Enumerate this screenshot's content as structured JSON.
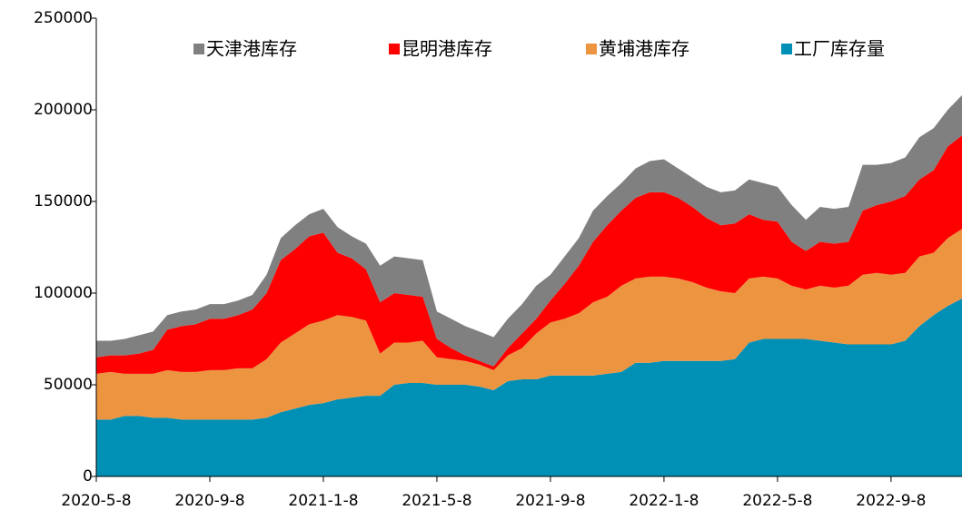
{
  "chart_data": {
    "type": "stacked_area",
    "categories": [
      "2020-5-8",
      null,
      null,
      null,
      null,
      null,
      null,
      null,
      "2020-9-8",
      null,
      null,
      null,
      null,
      null,
      null,
      null,
      "2021-1-8",
      null,
      null,
      null,
      null,
      null,
      null,
      null,
      "2021-5-8",
      null,
      null,
      null,
      null,
      null,
      null,
      null,
      "2021-9-8",
      null,
      null,
      null,
      null,
      null,
      null,
      null,
      "2022-1-8",
      null,
      null,
      null,
      null,
      null,
      null,
      null,
      "2022-5-8",
      null,
      null,
      null,
      null,
      null,
      null,
      null,
      "2022-9-8",
      null,
      null,
      null,
      null,
      null
    ],
    "series": [
      {
        "name": "天津港库存",
        "color": "#808080",
        "values": [
          9000,
          8000,
          9000,
          10000,
          10000,
          8000,
          8000,
          8000,
          8000,
          8000,
          8000,
          8000,
          10000,
          12000,
          13000,
          12000,
          13000,
          14000,
          12000,
          14000,
          20000,
          20000,
          20000,
          20000,
          15000,
          16000,
          16000,
          16000,
          16000,
          16000,
          16000,
          18000,
          14000,
          15000,
          15000,
          17000,
          16000,
          15000,
          16000,
          17000,
          18000,
          16000,
          16000,
          17000,
          18000,
          18000,
          19000,
          20000,
          19000,
          20000,
          17000,
          19000,
          19000,
          19000,
          25000,
          22000,
          21000,
          21000,
          23000,
          23000,
          20000,
          22000
        ]
      },
      {
        "name": "昆明港库存",
        "color": "#ff0000",
        "values": [
          9000,
          9000,
          10000,
          11000,
          13000,
          22000,
          25000,
          26000,
          28000,
          28000,
          29000,
          32000,
          36000,
          45000,
          46000,
          48000,
          48000,
          34000,
          32000,
          28000,
          28000,
          27000,
          26000,
          24000,
          10000,
          6000,
          3000,
          2000,
          2000,
          4000,
          8000,
          8000,
          12000,
          19000,
          26000,
          33000,
          39000,
          41000,
          44000,
          46000,
          46000,
          44000,
          41000,
          38000,
          36000,
          38000,
          35000,
          31000,
          31000,
          24000,
          21000,
          24000,
          24000,
          24000,
          35000,
          37000,
          40000,
          42000,
          42000,
          45000,
          50000,
          51000
        ]
      },
      {
        "name": "黄埔港库存",
        "color": "#ed9441",
        "values": [
          25000,
          26000,
          23000,
          23000,
          24000,
          26000,
          26000,
          26000,
          27000,
          27000,
          28000,
          28000,
          32000,
          38000,
          41000,
          44000,
          45000,
          46000,
          44000,
          41000,
          23000,
          23000,
          22000,
          23000,
          15000,
          14000,
          13000,
          12000,
          11000,
          14000,
          17000,
          25000,
          29000,
          31000,
          34000,
          40000,
          42000,
          47000,
          46000,
          47000,
          46000,
          45000,
          43000,
          40000,
          38000,
          36000,
          35000,
          34000,
          33000,
          29000,
          27000,
          30000,
          30000,
          32000,
          38000,
          39000,
          38000,
          37000,
          38000,
          34000,
          37000,
          38000
        ]
      },
      {
        "name": "工厂库存量",
        "color": "#0090b6",
        "values": [
          31000,
          31000,
          33000,
          33000,
          32000,
          32000,
          31000,
          31000,
          31000,
          31000,
          31000,
          31000,
          32000,
          35000,
          37000,
          39000,
          40000,
          42000,
          43000,
          44000,
          44000,
          50000,
          51000,
          51000,
          50000,
          50000,
          50000,
          49000,
          47000,
          52000,
          53000,
          53000,
          55000,
          55000,
          55000,
          55000,
          56000,
          57000,
          62000,
          62000,
          63000,
          63000,
          63000,
          63000,
          63000,
          64000,
          73000,
          75000,
          75000,
          75000,
          75000,
          74000,
          73000,
          72000,
          72000,
          72000,
          72000,
          74000,
          82000,
          88000,
          93000,
          97000
        ]
      }
    ],
    "ylim": [
      0,
      250000
    ],
    "yticks": [
      0,
      50000,
      100000,
      150000,
      200000,
      250000
    ]
  }
}
